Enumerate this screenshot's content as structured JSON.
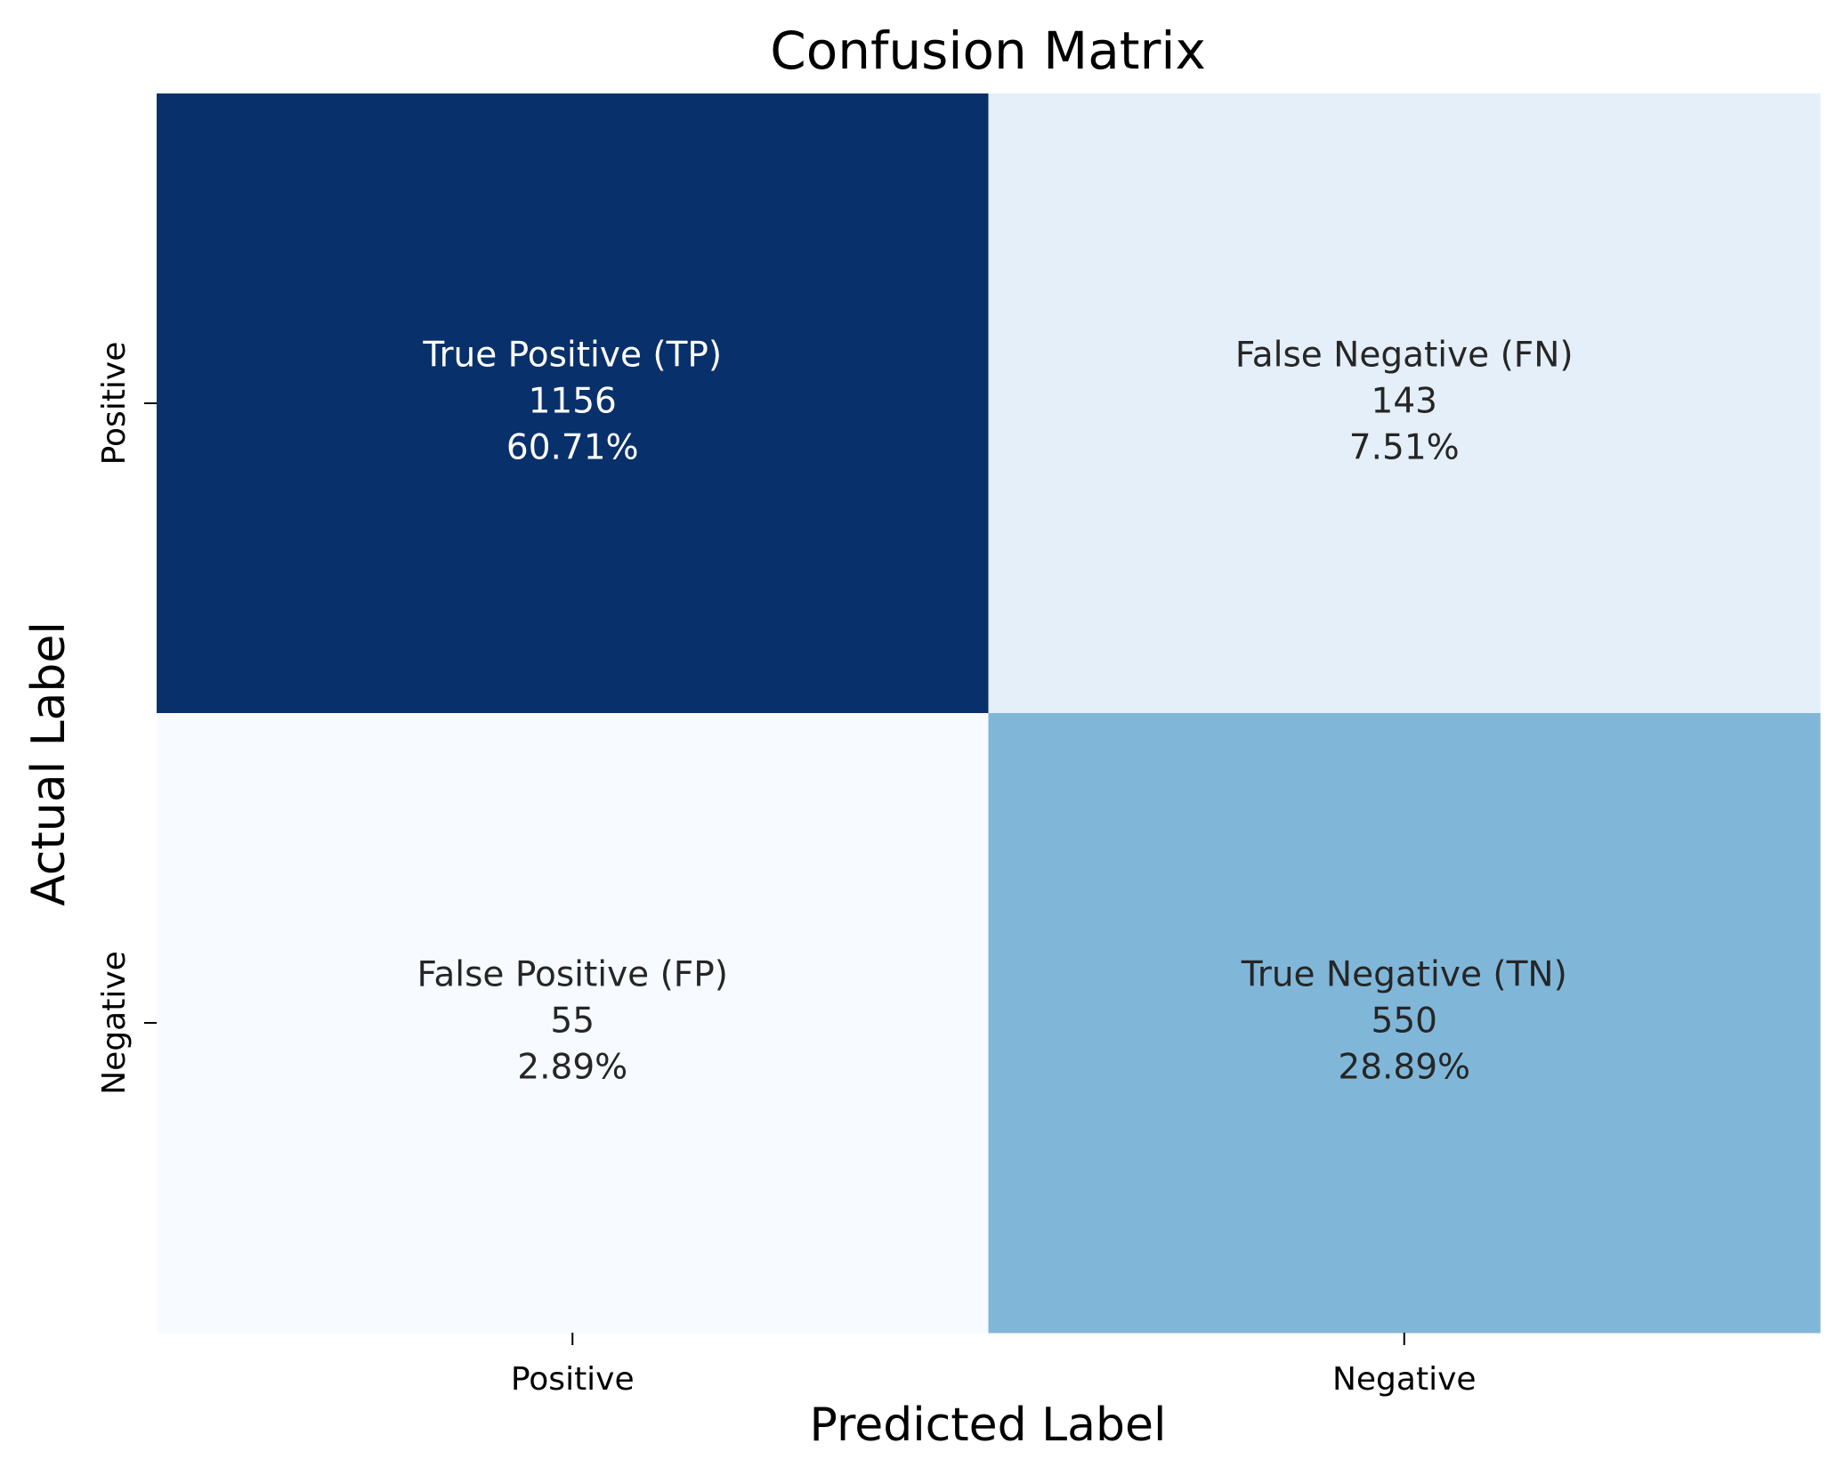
{
  "chart_data": {
    "type": "heatmap",
    "title": "Confusion Matrix",
    "xlabel": "Predicted Label",
    "ylabel": "Actual Label",
    "x_categories": [
      "Positive",
      "Negative"
    ],
    "y_categories": [
      "Positive",
      "Negative"
    ],
    "colormap": "Blues",
    "colorbar": false,
    "cells": [
      {
        "row": 0,
        "col": 0,
        "label": "True Positive (TP)",
        "count": 1156,
        "percent": "60.71%",
        "color": "#08306b",
        "text_color": "#ffffff"
      },
      {
        "row": 0,
        "col": 1,
        "label": "False Negative (FN)",
        "count": 143,
        "percent": "7.51%",
        "color": "#e4eff9",
        "text_color": "#262626"
      },
      {
        "row": 1,
        "col": 0,
        "label": "False Positive (FP)",
        "count": 55,
        "percent": "2.89%",
        "color": "#f7fbff",
        "text_color": "#262626"
      },
      {
        "row": 1,
        "col": 1,
        "label": "True Negative (TN)",
        "count": 550,
        "percent": "28.89%",
        "color": "#80b7d9",
        "text_color": "#262626"
      }
    ]
  }
}
